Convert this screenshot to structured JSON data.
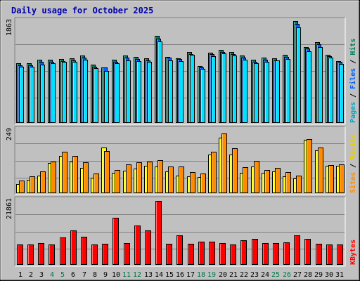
{
  "chart_data": {
    "type": "bar",
    "title": "Daily usage for October 2025",
    "categories": [
      "1",
      "2",
      "3",
      "4",
      "5",
      "6",
      "7",
      "8",
      "9",
      "10",
      "11",
      "12",
      "13",
      "14",
      "15",
      "16",
      "17",
      "18",
      "19",
      "20",
      "21",
      "22",
      "23",
      "24",
      "25",
      "26",
      "27",
      "28",
      "29",
      "30",
      "31"
    ],
    "weekend_days": [
      4,
      5,
      11,
      12,
      18,
      19,
      25,
      26
    ],
    "colors": {
      "title": "#0000b0",
      "weekday_label": "#000000",
      "weekend_label": "#007848",
      "hits": "#00805c",
      "files": "#0060ff",
      "pages": "#00e0ff",
      "visits": "#ffff00",
      "sites": "#ff8c00",
      "kbytes": "#ff0000"
    },
    "panels": [
      {
        "id": "hits",
        "ymax_label": "1863",
        "ymax": 1863,
        "right_label": [
          {
            "text": "Pages",
            "color": "#00a8c8"
          },
          {
            "text": " / ",
            "color": "#000000"
          },
          {
            "text": "Files",
            "color": "#0060ff"
          },
          {
            "text": " / ",
            "color": "#000000"
          },
          {
            "text": "Hits",
            "color": "#00805c"
          }
        ],
        "series": [
          {
            "name": "Hits",
            "values": [
              1100,
              1100,
              1160,
              1160,
              1180,
              1190,
              1240,
              1070,
              1020,
              1160,
              1240,
              1220,
              1190,
              1610,
              1210,
              1190,
              1310,
              1050,
              1290,
              1350,
              1310,
              1240,
              1170,
              1200,
              1190,
              1260,
              1880,
              1400,
              1490,
              1260,
              1140
            ]
          },
          {
            "name": "Files",
            "values": [
              1060,
              1060,
              1120,
              1120,
              1140,
              1150,
              1200,
              1030,
              1020,
              1130,
              1200,
              1180,
              1150,
              1550,
              1200,
              1180,
              1270,
              1020,
              1270,
              1310,
              1270,
              1200,
              1130,
              1160,
              1150,
              1220,
              1820,
              1370,
              1450,
              1230,
              1120
            ]
          },
          {
            "name": "Pages",
            "values": [
              1040,
              1040,
              1080,
              1100,
              1120,
              1130,
              1160,
              1010,
              960,
              1100,
              1150,
              1140,
              1120,
              1500,
              1150,
              1140,
              1250,
              1000,
              1230,
              1280,
              1240,
              1170,
              1100,
              1130,
              1150,
              1180,
              1760,
              1320,
              1400,
              1200,
              1090
            ]
          }
        ]
      },
      {
        "id": "visits",
        "ymax_label": "249",
        "ymax": 249,
        "right_label": [
          {
            "text": "Sites",
            "color": "#ff8c00"
          },
          {
            "text": " / ",
            "color": "#000000"
          },
          {
            "text": "Visits",
            "color": "#e8d000"
          }
        ],
        "series": [
          {
            "name": "Visits",
            "values": [
              35,
              54,
              70,
              120,
              149,
              126,
              100,
              61,
              181,
              82,
              89,
              99,
              109,
              106,
              88,
              70,
              66,
              63,
              155,
              220,
              155,
              80,
              106,
              82,
              88,
              68,
              58,
              212,
              172,
              108,
              110
            ]
          },
          {
            "name": "Sites",
            "values": [
              50,
              66,
              86,
              126,
              164,
              148,
              123,
              79,
              169,
              91,
              114,
              124,
              126,
              132,
              107,
              105,
              84,
              77,
              164,
              238,
              178,
              104,
              128,
              92,
              101,
              83,
              69,
              216,
              183,
              112,
              114
            ]
          }
        ]
      },
      {
        "id": "kbytes",
        "ymax_label": "21861",
        "ymax": 21861,
        "right_label": [
          {
            "text": "KBytes",
            "color": "#ff0000"
          }
        ],
        "series": [
          {
            "name": "KBytes",
            "values": [
              7000,
              7000,
              7500,
              6900,
              9400,
              11800,
              9500,
              7000,
              7200,
              16000,
              7400,
              13500,
              11800,
              21861,
              7300,
              10100,
              7100,
              8000,
              8000,
              7400,
              7000,
              8500,
              9000,
              7400,
              7400,
              7800,
              10000,
              8800,
              7100,
              7000,
              7000
            ]
          }
        ]
      }
    ]
  }
}
